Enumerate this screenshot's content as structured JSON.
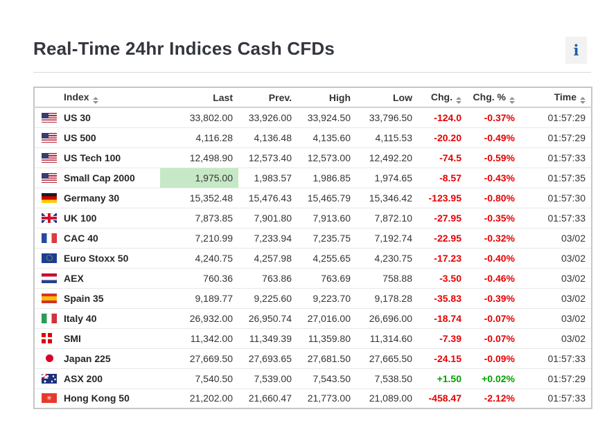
{
  "page": {
    "title": "Real-Time 24hr Indices Cash CFDs",
    "info_label": "i"
  },
  "colors": {
    "negative": "#e60000",
    "positive": "#00a000",
    "flash_up_bg": "#c6e8c6",
    "info_icon_blue": "#1e5fa8"
  },
  "table": {
    "columns": [
      {
        "key": "name",
        "label": "Index",
        "sortable": true,
        "align": "left"
      },
      {
        "key": "last",
        "label": "Last",
        "sortable": false,
        "align": "right"
      },
      {
        "key": "prev",
        "label": "Prev.",
        "sortable": false,
        "align": "right"
      },
      {
        "key": "high",
        "label": "High",
        "sortable": false,
        "align": "right"
      },
      {
        "key": "low",
        "label": "Low",
        "sortable": false,
        "align": "right"
      },
      {
        "key": "chg",
        "label": "Chg.",
        "sortable": true,
        "align": "right"
      },
      {
        "key": "chg_pct",
        "label": "Chg. %",
        "sortable": true,
        "align": "right"
      },
      {
        "key": "time",
        "label": "Time",
        "sortable": true,
        "align": "right"
      }
    ],
    "rows": [
      {
        "flag": "us",
        "name": "US 30",
        "last": "33,802.00",
        "prev": "33,926.00",
        "high": "33,924.50",
        "low": "33,796.50",
        "chg": "-124.0",
        "chg_pct": "-0.37%",
        "time": "01:57:29",
        "direction": "down",
        "last_flash": false
      },
      {
        "flag": "us",
        "name": "US 500",
        "last": "4,116.28",
        "prev": "4,136.48",
        "high": "4,135.60",
        "low": "4,115.53",
        "chg": "-20.20",
        "chg_pct": "-0.49%",
        "time": "01:57:29",
        "direction": "down",
        "last_flash": false
      },
      {
        "flag": "us",
        "name": "US Tech 100",
        "last": "12,498.90",
        "prev": "12,573.40",
        "high": "12,573.00",
        "low": "12,492.20",
        "chg": "-74.5",
        "chg_pct": "-0.59%",
        "time": "01:57:33",
        "direction": "down",
        "last_flash": false
      },
      {
        "flag": "us",
        "name": "Small Cap 2000",
        "last": "1,975.00",
        "prev": "1,983.57",
        "high": "1,986.85",
        "low": "1,974.65",
        "chg": "-8.57",
        "chg_pct": "-0.43%",
        "time": "01:57:35",
        "direction": "down",
        "last_flash": true
      },
      {
        "flag": "de",
        "name": "Germany 30",
        "last": "15,352.48",
        "prev": "15,476.43",
        "high": "15,465.79",
        "low": "15,346.42",
        "chg": "-123.95",
        "chg_pct": "-0.80%",
        "time": "01:57:30",
        "direction": "down",
        "last_flash": false
      },
      {
        "flag": "gb",
        "name": "UK 100",
        "last": "7,873.85",
        "prev": "7,901.80",
        "high": "7,913.60",
        "low": "7,872.10",
        "chg": "-27.95",
        "chg_pct": "-0.35%",
        "time": "01:57:33",
        "direction": "down",
        "last_flash": false
      },
      {
        "flag": "fr",
        "name": "CAC 40",
        "last": "7,210.99",
        "prev": "7,233.94",
        "high": "7,235.75",
        "low": "7,192.74",
        "chg": "-22.95",
        "chg_pct": "-0.32%",
        "time": "03/02",
        "direction": "down",
        "last_flash": false
      },
      {
        "flag": "eu",
        "name": "Euro Stoxx 50",
        "last": "4,240.75",
        "prev": "4,257.98",
        "high": "4,255.65",
        "low": "4,230.75",
        "chg": "-17.23",
        "chg_pct": "-0.40%",
        "time": "03/02",
        "direction": "down",
        "last_flash": false
      },
      {
        "flag": "nl",
        "name": "AEX",
        "last": "760.36",
        "prev": "763.86",
        "high": "763.69",
        "low": "758.88",
        "chg": "-3.50",
        "chg_pct": "-0.46%",
        "time": "03/02",
        "direction": "down",
        "last_flash": false
      },
      {
        "flag": "es",
        "name": "Spain 35",
        "last": "9,189.77",
        "prev": "9,225.60",
        "high": "9,223.70",
        "low": "9,178.28",
        "chg": "-35.83",
        "chg_pct": "-0.39%",
        "time": "03/02",
        "direction": "down",
        "last_flash": false
      },
      {
        "flag": "it",
        "name": "Italy 40",
        "last": "26,932.00",
        "prev": "26,950.74",
        "high": "27,016.00",
        "low": "26,696.00",
        "chg": "-18.74",
        "chg_pct": "-0.07%",
        "time": "03/02",
        "direction": "down",
        "last_flash": false
      },
      {
        "flag": "ch",
        "name": "SMI",
        "last": "11,342.00",
        "prev": "11,349.39",
        "high": "11,359.80",
        "low": "11,314.60",
        "chg": "-7.39",
        "chg_pct": "-0.07%",
        "time": "03/02",
        "direction": "down",
        "last_flash": false
      },
      {
        "flag": "jp",
        "name": "Japan 225",
        "last": "27,669.50",
        "prev": "27,693.65",
        "high": "27,681.50",
        "low": "27,665.50",
        "chg": "-24.15",
        "chg_pct": "-0.09%",
        "time": "01:57:33",
        "direction": "down",
        "last_flash": false
      },
      {
        "flag": "au",
        "name": "ASX 200",
        "last": "7,540.50",
        "prev": "7,539.00",
        "high": "7,543.50",
        "low": "7,538.50",
        "chg": "+1.50",
        "chg_pct": "+0.02%",
        "time": "01:57:29",
        "direction": "up",
        "last_flash": false
      },
      {
        "flag": "hk",
        "name": "Hong Kong 50",
        "last": "21,202.00",
        "prev": "21,660.47",
        "high": "21,773.00",
        "low": "21,089.00",
        "chg": "-458.47",
        "chg_pct": "-2.12%",
        "time": "01:57:33",
        "direction": "down",
        "last_flash": false
      }
    ]
  }
}
